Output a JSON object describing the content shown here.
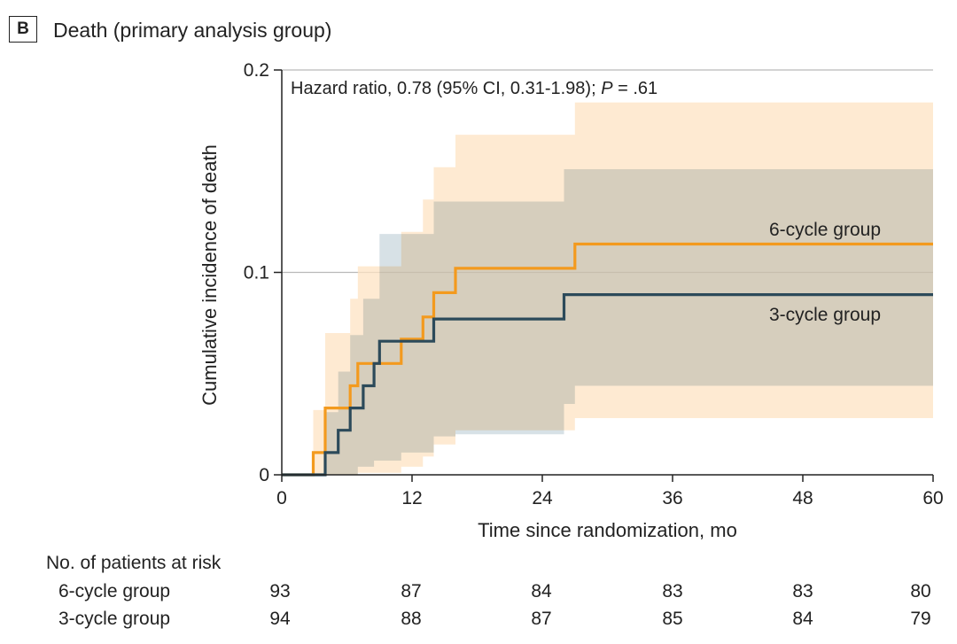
{
  "panel": {
    "letter": "B",
    "title": "Death (primary analysis group)"
  },
  "chart_data": {
    "type": "line",
    "subtype": "step (cumulative incidence)",
    "xlabel": "Time since randomization, mo",
    "ylabel": "Cumulative incidence of death",
    "xlim": [
      0,
      60
    ],
    "ylim": [
      0,
      0.2
    ],
    "x_ticks": [
      0,
      12,
      24,
      36,
      48,
      60
    ],
    "y_ticks": [
      0,
      0.1,
      0.2
    ],
    "y_tick_labels": [
      "0",
      "0.1",
      "0.2"
    ],
    "grid": "horizontal at 0.1 and 0.2",
    "annotation": {
      "prefix": "Hazard ratio, 0.78 (95% CI, 0.31-1.98); ",
      "p_label": "P",
      "p_value": " = .61"
    },
    "series": [
      {
        "name": "6-cycle group",
        "color": "#f39a1e",
        "band_color": "#fde3c3",
        "steps": [
          [
            0,
            0
          ],
          [
            2.9,
            0.011
          ],
          [
            4.0,
            0.033
          ],
          [
            6.3,
            0.044
          ],
          [
            7.0,
            0.055
          ],
          [
            8.5,
            0.055
          ],
          [
            11.0,
            0.067
          ],
          [
            13.0,
            0.078
          ],
          [
            14.0,
            0.09
          ],
          [
            16.0,
            0.102
          ],
          [
            27.0,
            0.114
          ],
          [
            60,
            0.114
          ]
        ],
        "ci_upper": [
          [
            0,
            0
          ],
          [
            2.9,
            0.032
          ],
          [
            4.0,
            0.07
          ],
          [
            6.3,
            0.087
          ],
          [
            7.0,
            0.103
          ],
          [
            11.0,
            0.12
          ],
          [
            13.0,
            0.136
          ],
          [
            14.0,
            0.152
          ],
          [
            16.0,
            0.168
          ],
          [
            27.0,
            0.184
          ],
          [
            60,
            0.184
          ]
        ],
        "ci_lower": [
          [
            0,
            0
          ],
          [
            7.0,
            0.001
          ],
          [
            11.0,
            0.004
          ],
          [
            13.0,
            0.009
          ],
          [
            14.0,
            0.015
          ],
          [
            16.0,
            0.022
          ],
          [
            27.0,
            0.028
          ],
          [
            60,
            0.028
          ]
        ]
      },
      {
        "name": "3-cycle group",
        "color": "#2c4a5a",
        "band_color": "#c7d5dc",
        "steps": [
          [
            0,
            0
          ],
          [
            4.0,
            0.011
          ],
          [
            5.2,
            0.022
          ],
          [
            6.3,
            0.033
          ],
          [
            7.5,
            0.044
          ],
          [
            8.5,
            0.055
          ],
          [
            9.0,
            0.066
          ],
          [
            14.0,
            0.077
          ],
          [
            26.0,
            0.089
          ],
          [
            60,
            0.089
          ]
        ],
        "ci_upper": [
          [
            0,
            0
          ],
          [
            4.0,
            0.031
          ],
          [
            5.2,
            0.051
          ],
          [
            6.3,
            0.069
          ],
          [
            7.5,
            0.087
          ],
          [
            9.0,
            0.119
          ],
          [
            14.0,
            0.135
          ],
          [
            26.0,
            0.151
          ],
          [
            60,
            0.151
          ]
        ],
        "ci_lower": [
          [
            0,
            0
          ],
          [
            7.0,
            0.004
          ],
          [
            8.5,
            0.007
          ],
          [
            11.0,
            0.011
          ],
          [
            14.0,
            0.019
          ],
          [
            16.0,
            0.02
          ],
          [
            26.0,
            0.035
          ],
          [
            27.0,
            0.044
          ],
          [
            60,
            0.044
          ]
        ]
      }
    ]
  },
  "risk_table": {
    "heading": "No. of patients at risk",
    "rows": [
      {
        "label": "6-cycle group",
        "values": [
          "93",
          "87",
          "84",
          "83",
          "83",
          "80"
        ]
      },
      {
        "label": "3-cycle group",
        "values": [
          "94",
          "88",
          "87",
          "85",
          "84",
          "79"
        ]
      }
    ]
  }
}
